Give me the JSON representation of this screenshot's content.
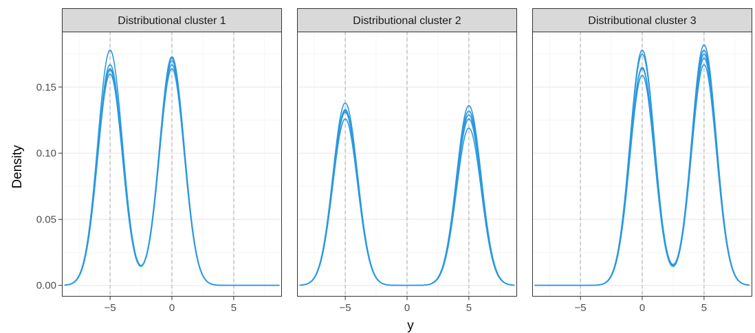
{
  "chart_data": {
    "type": "line",
    "title": "",
    "xlabel": "y",
    "ylabel": "Density",
    "xlim": [
      -8.9,
      8.9
    ],
    "ylim": [
      -0.0085,
      0.192
    ],
    "x_ticks": [
      -5,
      0,
      5
    ],
    "x_tick_labels": [
      "−5",
      "0",
      "5"
    ],
    "y_ticks": [
      0,
      0.05,
      0.1,
      0.15
    ],
    "y_tick_labels": [
      "0.00",
      "0.05",
      "0.10",
      "0.15"
    ],
    "grid": true,
    "legend": "none",
    "line_color": "#2b98df",
    "reference_line_color": "#bdbdbd",
    "x_range": [
      -8.7,
      8.7
    ],
    "panels": [
      {
        "strip": "Distributional cluster 1",
        "reference_lines": [
          -5,
          0,
          5
        ],
        "component_means": [
          -5,
          0
        ],
        "peak_densities": [
          [
            0.178,
            0.164
          ],
          [
            0.167,
            0.172
          ],
          [
            0.164,
            0.17
          ],
          [
            0.16,
            0.167
          ],
          [
            0.163,
            0.173
          ]
        ]
      },
      {
        "strip": "Distributional cluster 2",
        "reference_lines": [
          -5,
          0,
          5
        ],
        "component_means": [
          -5,
          5
        ],
        "peak_densities": [
          [
            0.138,
            0.136
          ],
          [
            0.133,
            0.132
          ],
          [
            0.131,
            0.129
          ],
          [
            0.126,
            0.126
          ],
          [
            0.132,
            0.119
          ]
        ]
      },
      {
        "strip": "Distributional cluster 3",
        "reference_lines": [
          -5,
          0,
          5
        ],
        "component_means": [
          0,
          5
        ],
        "peak_densities": [
          [
            0.178,
            0.182
          ],
          [
            0.175,
            0.178
          ],
          [
            0.165,
            0.172
          ],
          [
            0.159,
            0.167
          ],
          [
            0.164,
            0.175
          ]
        ]
      }
    ]
  },
  "colors": {
    "panel_border": "#333333",
    "strip_fill": "#d9d9d9",
    "grid_major": "#ebebeb",
    "grid_minor": "#f5f5f5"
  }
}
